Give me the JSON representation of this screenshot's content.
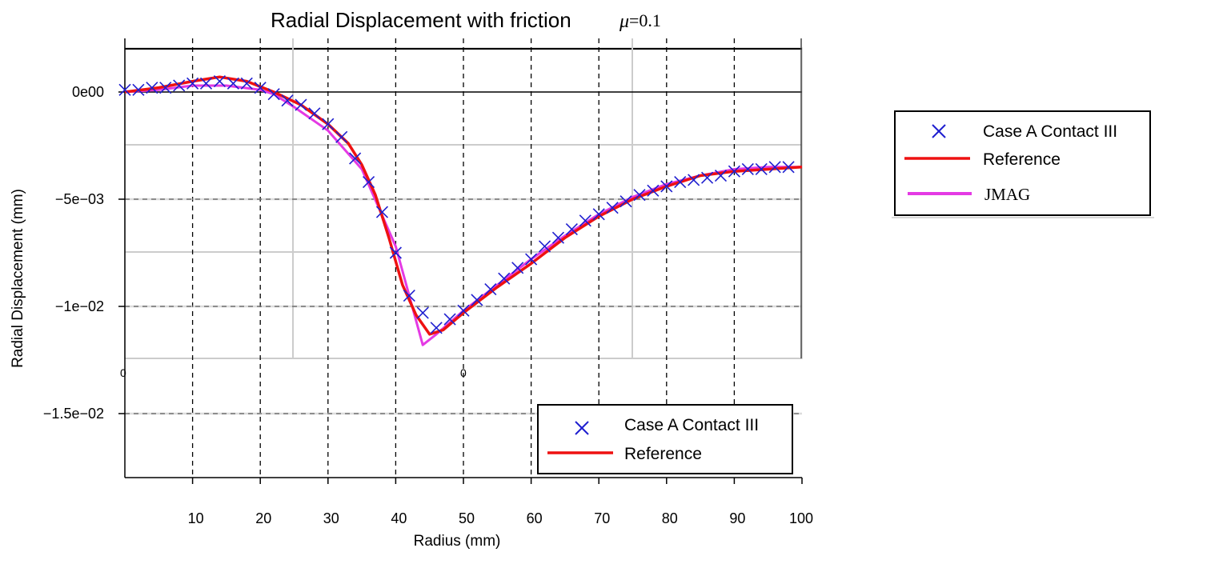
{
  "chart_data": {
    "type": "line",
    "title": "Radial Displacement with friction",
    "title_symbol": "μ",
    "title_value": "=0.1",
    "xlabel": "Radius (mm)",
    "ylabel": "Radial Displacement (mm)",
    "xlim": [
      0,
      100
    ],
    "ylim": [
      -0.018,
      0.002
    ],
    "xticks": [
      10,
      20,
      30,
      40,
      50,
      60,
      70,
      80,
      90,
      100
    ],
    "xtick_labels": [
      "10",
      "20",
      "30",
      "40",
      "50",
      "60",
      "70",
      "80",
      "90",
      "100"
    ],
    "yticks": [
      0,
      -0.005,
      -0.01,
      -0.015
    ],
    "ytick_labels": [
      "0e00",
      "−5e−03",
      "−1e−02",
      "−1.5e−02"
    ],
    "stray_labels": [
      "0",
      "0"
    ],
    "grid": true,
    "series": [
      {
        "name": "Case A Contact III",
        "marker": "x",
        "color": "#1f1fcf",
        "x": [
          0,
          2,
          4,
          6,
          8,
          10,
          12,
          14,
          16,
          18,
          20,
          22,
          24,
          26,
          28,
          30,
          32,
          34,
          36,
          38,
          40,
          42,
          44,
          46,
          48,
          50,
          52,
          54,
          56,
          58,
          60,
          62,
          64,
          66,
          68,
          70,
          72,
          74,
          76,
          78,
          80,
          82,
          84,
          86,
          88,
          90,
          92,
          94,
          96,
          98
        ],
        "y": [
          0.0001,
          0.0001,
          0.0002,
          0.0002,
          0.0003,
          0.0004,
          0.0004,
          0.0005,
          0.0004,
          0.0004,
          0.0002,
          -0.0001,
          -0.0004,
          -0.0006,
          -0.001,
          -0.0015,
          -0.0021,
          -0.0031,
          -0.0042,
          -0.0056,
          -0.0075,
          -0.0095,
          -0.0103,
          -0.011,
          -0.0106,
          -0.0102,
          -0.0097,
          -0.0092,
          -0.0087,
          -0.0082,
          -0.0078,
          -0.0072,
          -0.0068,
          -0.0064,
          -0.006,
          -0.0057,
          -0.0054,
          -0.0051,
          -0.0048,
          -0.0046,
          -0.0044,
          -0.0042,
          -0.0041,
          -0.004,
          -0.0039,
          -0.0037,
          -0.0036,
          -0.0036,
          -0.0035,
          -0.0035
        ]
      },
      {
        "name": "Reference",
        "color": "#ee1111",
        "x": [
          0,
          5,
          10,
          14,
          18,
          22,
          26,
          30,
          33,
          35,
          37,
          39,
          41,
          43,
          45,
          47,
          50,
          55,
          60,
          65,
          70,
          75,
          80,
          85,
          90,
          95,
          100
        ],
        "y": [
          0.0,
          0.0002,
          0.0005,
          0.0007,
          0.0005,
          0.0,
          -0.0006,
          -0.0015,
          -0.0024,
          -0.0034,
          -0.0048,
          -0.0068,
          -0.009,
          -0.0104,
          -0.0113,
          -0.0111,
          -0.0103,
          -0.0091,
          -0.008,
          -0.0068,
          -0.0058,
          -0.005,
          -0.0044,
          -0.0039,
          -0.0037,
          -0.0036,
          -0.0035
        ]
      },
      {
        "name": "JMAG",
        "color": "#e43ae4",
        "x": [
          0,
          5,
          10,
          15,
          20,
          22,
          25,
          30,
          35,
          40,
          44,
          46,
          50,
          55,
          60,
          65,
          70,
          75,
          80,
          85,
          90,
          95,
          100
        ],
        "y": [
          0.0,
          0.0001,
          0.0003,
          0.0003,
          0.0001,
          -0.0001,
          -0.0007,
          -0.0018,
          -0.0036,
          -0.0072,
          -0.0118,
          -0.0113,
          -0.0102,
          -0.009,
          -0.0078,
          -0.0067,
          -0.0057,
          -0.0049,
          -0.0043,
          -0.0039,
          -0.0036,
          -0.0035,
          -0.0035
        ]
      }
    ],
    "legends": [
      {
        "position": "bottom-right",
        "entries": [
          "Case A Contact III",
          "Reference"
        ]
      },
      {
        "position": "outside-right",
        "entries": [
          "Case A Contact III",
          "Reference",
          "JMAG"
        ]
      }
    ]
  }
}
